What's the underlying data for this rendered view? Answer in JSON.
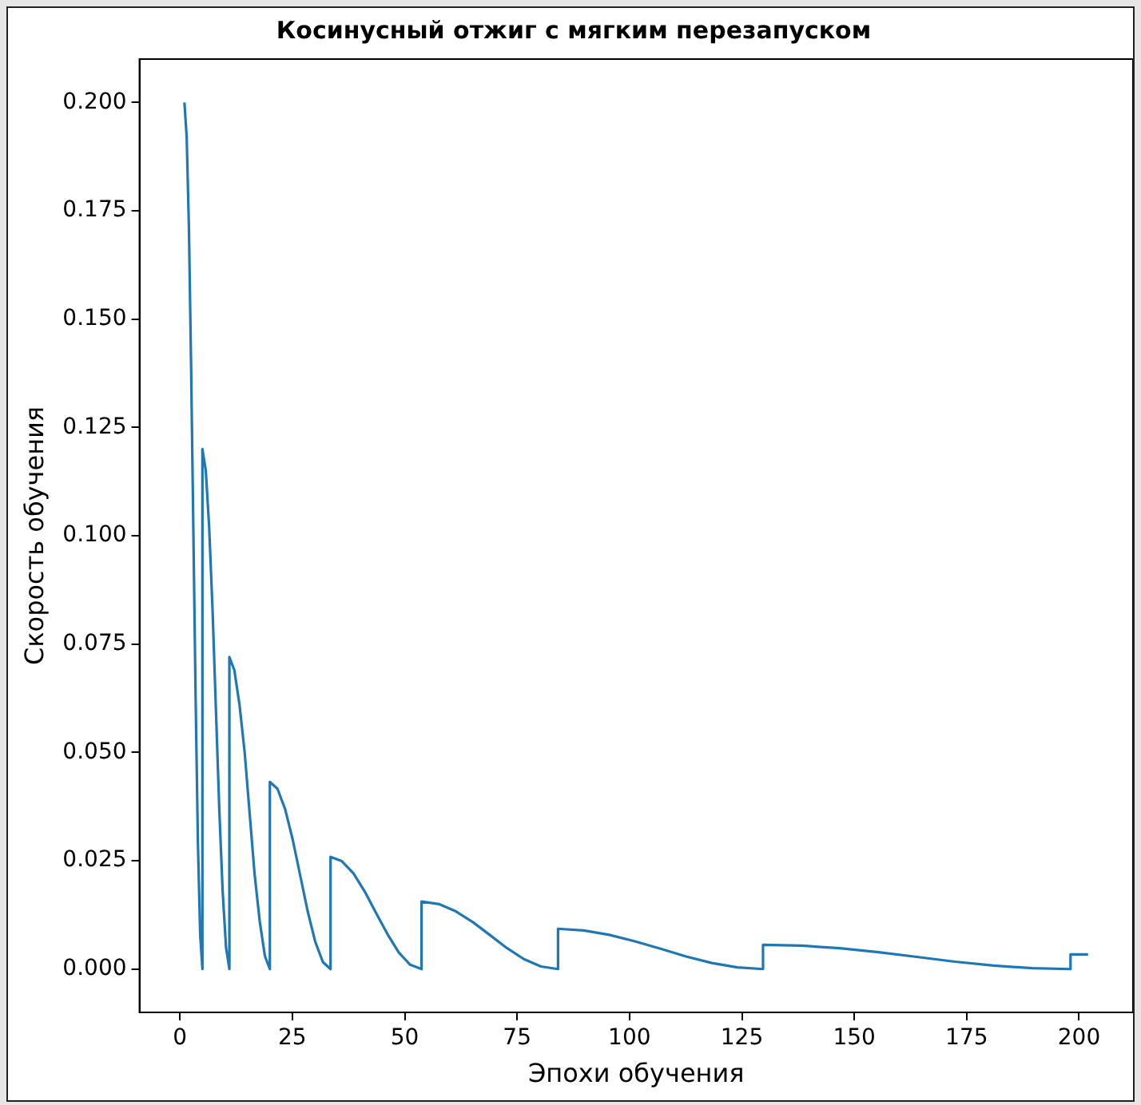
{
  "chart_data": {
    "type": "line",
    "title": "Косинусный отжиг с мягким перезапуском",
    "xlabel": "Эпохи обучения",
    "ylabel": "Скорость обучения",
    "x": [
      1,
      1.5,
      2,
      2.5,
      3,
      3.5,
      4,
      4.5,
      5,
      5,
      5.75,
      6.5,
      7.25,
      8,
      8.75,
      9.5,
      10.25,
      11,
      11,
      12.1,
      13.25,
      14.4,
      15.5,
      16.6,
      17.75,
      18.9,
      20,
      20,
      21.7,
      23.4,
      25.1,
      26.75,
      28.4,
      30.1,
      31.8,
      33.5,
      33.5,
      36,
      38.6,
      41.1,
      43.6,
      46.2,
      48.7,
      51.2,
      53.75,
      53.75,
      57.6,
      61.4,
      65.2,
      69,
      72.8,
      76.5,
      80.3,
      84.1,
      84.1,
      89.8,
      95.5,
      101.2,
      106.9,
      112.6,
      118.3,
      124,
      129.7,
      129.7,
      138.3,
      146.8,
      155.4,
      163.9,
      172.4,
      181,
      189.6,
      198.1,
      198.1,
      202
    ],
    "series": [
      {
        "color": "#1f77b4",
        "values": [
          0.2,
          0.192,
          0.171,
          0.138,
          0.1,
          0.062,
          0.029,
          0.008,
          0,
          0.12,
          0.115,
          0.102,
          0.083,
          0.06,
          0.037,
          0.018,
          0.005,
          0,
          0.072,
          0.069,
          0.061,
          0.05,
          0.036,
          0.022,
          0.011,
          0.003,
          0,
          0.0432,
          0.0416,
          0.0369,
          0.0298,
          0.0216,
          0.0134,
          0.0063,
          0.0016,
          0,
          0.0259,
          0.0249,
          0.0221,
          0.0179,
          0.013,
          0.008,
          0.0038,
          0.001,
          0,
          0.0156,
          0.015,
          0.0133,
          0.0108,
          0.0078,
          0.0048,
          0.0023,
          0.0006,
          0,
          0.0093,
          0.0089,
          0.0079,
          0.0064,
          0.0047,
          0.0029,
          0.0014,
          0.0004,
          0,
          0.0056,
          0.0054,
          0.0048,
          0.0039,
          0.0028,
          0.0017,
          0.0008,
          0.0002,
          0,
          0.0034,
          0.0034
        ]
      }
    ],
    "xlim": [
      -9,
      212
    ],
    "ylim": [
      -0.01,
      0.21
    ],
    "xticks": [
      0,
      25,
      50,
      75,
      100,
      125,
      150,
      175,
      200
    ],
    "yticks": [
      {
        "value": 0,
        "label": "0.000"
      },
      {
        "value": 0.025,
        "label": "0.025"
      },
      {
        "value": 0.05,
        "label": "0.050"
      },
      {
        "value": 0.075,
        "label": "0.075"
      },
      {
        "value": 0.1,
        "label": "0.100"
      },
      {
        "value": 0.125,
        "label": "0.125"
      },
      {
        "value": 0.15,
        "label": "0.150"
      },
      {
        "value": 0.175,
        "label": "0.175"
      },
      {
        "value": 0.2,
        "label": "0.200"
      }
    ],
    "grid": false,
    "legend": false,
    "marker": "none",
    "line_style": "solid"
  }
}
